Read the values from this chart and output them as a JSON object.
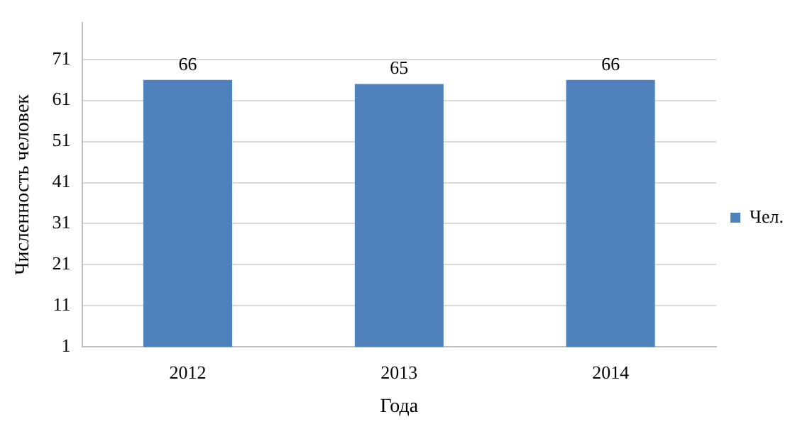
{
  "chart_data": {
    "type": "bar",
    "xlabel": "Года",
    "ylabel": "Численность человек",
    "categories": [
      "2012",
      "2013",
      "2014"
    ],
    "series": [
      {
        "name": "Чел.",
        "color": "#4f81bd",
        "values": [
          66,
          65,
          66
        ]
      }
    ],
    "ylim": [
      1,
      80
    ],
    "yticks": [
      1,
      11,
      21,
      31,
      41,
      51,
      61,
      71
    ],
    "grid": "y",
    "legend": "right",
    "data_labels": true
  }
}
